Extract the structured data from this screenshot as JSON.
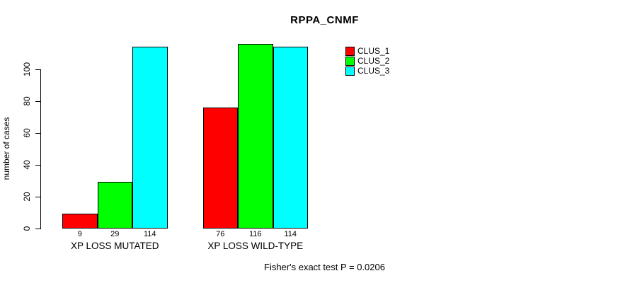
{
  "chart_data": {
    "type": "bar",
    "title": "RPPA_CNMF",
    "ylabel": "number of cases",
    "xlabel": "",
    "categories": [
      "XP LOSS MUTATED",
      "XP LOSS WILD-TYPE"
    ],
    "series": [
      {
        "name": "CLUS_1",
        "color": "#FF0000",
        "values": [
          9,
          76
        ]
      },
      {
        "name": "CLUS_2",
        "color": "#00FF00",
        "values": [
          29,
          116
        ]
      },
      {
        "name": "CLUS_3",
        "color": "#00FFFF",
        "values": [
          114,
          114
        ]
      }
    ],
    "yticks": [
      0,
      20,
      40,
      60,
      80,
      100
    ],
    "ylim": [
      0,
      116
    ],
    "grid": false,
    "legend_position": "top-right",
    "background": "#FFFFFF",
    "annotation": "Fisher's exact test P = 0.0206"
  }
}
